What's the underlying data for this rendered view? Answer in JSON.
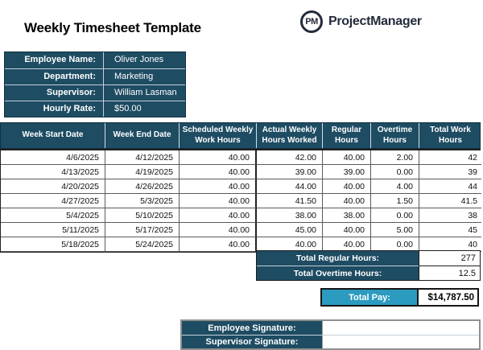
{
  "header": {
    "title": "Weekly Timesheet Template",
    "brand": {
      "logo_text": "PM",
      "name": "ProjectManager"
    }
  },
  "colors": {
    "dark_blue": "#1E4C63",
    "teal": "#2B9BC0",
    "logo_navy": "#232B3A"
  },
  "employee_info": {
    "rows": [
      {
        "label": "Employee Name:",
        "value": "Oliver Jones"
      },
      {
        "label": "Department:",
        "value": "Marketing"
      },
      {
        "label": "Supervisor:",
        "value": "William Lasman"
      },
      {
        "label": "Hourly Rate:",
        "value": "$50.00"
      }
    ]
  },
  "timesheet_table": {
    "columns": [
      "Week Start Date",
      "Week End Date",
      "Scheduled Weekly Work Hours",
      "Actual Weekly Hours Worked",
      "Regular Hours",
      "Overtime Hours",
      "Total Work Hours"
    ],
    "rows": [
      [
        "4/6/2025",
        "4/12/2025",
        "40.00",
        "42.00",
        "40.00",
        "2.00",
        "42"
      ],
      [
        "4/13/2025",
        "4/19/2025",
        "40.00",
        "39.00",
        "39.00",
        "0.00",
        "39"
      ],
      [
        "4/20/2025",
        "4/26/2025",
        "40.00",
        "44.00",
        "40.00",
        "4.00",
        "44"
      ],
      [
        "4/27/2025",
        "5/3/2025",
        "40.00",
        "41.50",
        "40.00",
        "1.50",
        "41.5"
      ],
      [
        "5/4/2025",
        "5/10/2025",
        "40.00",
        "38.00",
        "38.00",
        "0.00",
        "38"
      ],
      [
        "5/11/2025",
        "5/17/2025",
        "40.00",
        "45.00",
        "40.00",
        "5.00",
        "45"
      ],
      [
        "5/18/2025",
        "5/24/2025",
        "40.00",
        "40.00",
        "40.00",
        "0.00",
        "40"
      ]
    ]
  },
  "totals": {
    "regular": {
      "label": "Total Regular Hours:",
      "value": "277"
    },
    "overtime": {
      "label": "Total Overtime Hours:",
      "value": "12.5"
    },
    "pay": {
      "label": "Total Pay:",
      "value": "$14,787.50"
    }
  },
  "signatures": {
    "employee": {
      "label": "Employee Signature:",
      "value": ""
    },
    "supervisor": {
      "label": "Supervisor Signature:",
      "value": ""
    }
  }
}
